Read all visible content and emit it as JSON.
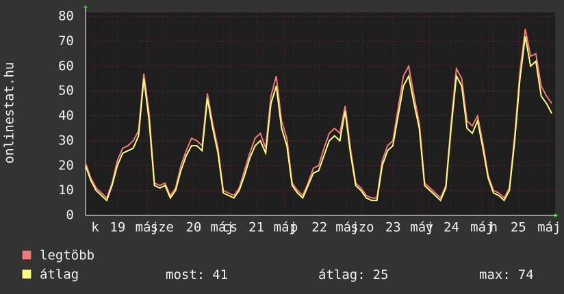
{
  "chart_data": {
    "type": "line",
    "y_label": "onlinestat.hu",
    "x": [
      0,
      2,
      4,
      6,
      8,
      10,
      12,
      14,
      16,
      18,
      20,
      22,
      24,
      26,
      28,
      30,
      32,
      34,
      36,
      38,
      40,
      42,
      44,
      46,
      48,
      50,
      52,
      54,
      56,
      58,
      60,
      62,
      64,
      66,
      68,
      70,
      72,
      74,
      76,
      78,
      80,
      82,
      84,
      86,
      88,
      90,
      92,
      94,
      96,
      98,
      100,
      102,
      104,
      106,
      108,
      110,
      112,
      114,
      116,
      118,
      120,
      122,
      124,
      126,
      128,
      130,
      132,
      134,
      136,
      138,
      140,
      142,
      144,
      146,
      148,
      150,
      152,
      154,
      156,
      158,
      160,
      162,
      164,
      166,
      168,
      170,
      172,
      174,
      176
    ],
    "series": [
      {
        "name": "legtöbb",
        "color": "#f07a7a",
        "values": [
          21,
          15,
          11,
          9,
          7,
          13,
          22,
          27,
          28,
          30,
          34,
          57,
          41,
          13,
          12,
          13,
          8,
          11,
          20,
          26,
          31,
          30,
          28,
          49,
          37,
          27,
          10,
          9,
          8,
          11,
          18,
          25,
          31,
          33,
          27,
          48,
          56,
          38,
          31,
          13,
          10,
          8,
          13,
          19,
          20,
          27,
          33,
          35,
          33,
          44,
          27,
          13,
          11,
          8,
          7,
          7,
          22,
          28,
          30,
          43,
          56,
          60,
          48,
          37,
          13,
          11,
          9,
          7,
          12,
          37,
          59,
          55,
          38,
          36,
          40,
          29,
          16,
          10,
          9,
          7,
          11,
          32,
          58,
          75,
          64,
          65,
          52,
          48,
          45
        ]
      },
      {
        "name": "átlag",
        "color": "#ffff80",
        "values": [
          20,
          14,
          10,
          8,
          6,
          12,
          20,
          25,
          26,
          27,
          32,
          55,
          38,
          12,
          11,
          12,
          7,
          10,
          18,
          24,
          28,
          28,
          26,
          47,
          35,
          25,
          9,
          8,
          7,
          10,
          16,
          23,
          28,
          30,
          25,
          45,
          52,
          35,
          28,
          12,
          9,
          7,
          12,
          17,
          18,
          24,
          30,
          32,
          30,
          42,
          25,
          12,
          10,
          7,
          6,
          6,
          20,
          26,
          28,
          40,
          52,
          56,
          45,
          35,
          12,
          10,
          8,
          6,
          11,
          35,
          56,
          52,
          35,
          33,
          38,
          27,
          15,
          9,
          8,
          6,
          10,
          30,
          55,
          72,
          60,
          62,
          48,
          45,
          41
        ]
      }
    ],
    "xlim": [
      0,
      177
    ],
    "xticks": [
      {
        "value": 3.6,
        "label": "k"
      },
      {
        "value": 12.1,
        "label": "19"
      },
      {
        "value": 23.2,
        "label": "máj"
      },
      {
        "value": 28.9,
        "label": "sze"
      },
      {
        "value": 40.8,
        "label": "20"
      },
      {
        "value": 51.6,
        "label": "máj"
      },
      {
        "value": 54.5,
        "label": "cs"
      },
      {
        "value": 64.5,
        "label": "21"
      },
      {
        "value": 75.4,
        "label": "máj"
      },
      {
        "value": 78.7,
        "label": "p"
      },
      {
        "value": 88.3,
        "label": "22"
      },
      {
        "value": 98.8,
        "label": "máj"
      },
      {
        "value": 104.5,
        "label": "szo"
      },
      {
        "value": 116.1,
        "label": "23"
      },
      {
        "value": 127.0,
        "label": "máj"
      },
      {
        "value": 129.8,
        "label": "v"
      },
      {
        "value": 138.1,
        "label": "24"
      },
      {
        "value": 149.7,
        "label": "máj"
      },
      {
        "value": 154.1,
        "label": "h"
      },
      {
        "value": 163.4,
        "label": "25"
      },
      {
        "value": 175.0,
        "label": "máj"
      }
    ],
    "ylim": [
      0,
      80
    ],
    "yticks": [
      0,
      10,
      20,
      30,
      40,
      50,
      60,
      70,
      80
    ],
    "grid": true,
    "stats": [
      {
        "label": "most:",
        "value": 41
      },
      {
        "label": "átlag:",
        "value": 25
      },
      {
        "label": "max:",
        "value": 74
      }
    ]
  }
}
